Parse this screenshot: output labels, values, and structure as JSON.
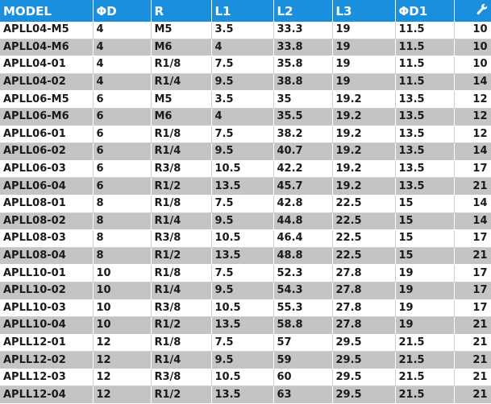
{
  "table": {
    "headers": [
      "MODEL",
      "ΦD",
      "R",
      "L1",
      "L2",
      "L3",
      "ΦD1"
    ],
    "last_header_icon": "wrench-icon",
    "rows": [
      [
        "APLL04-M5",
        "4",
        "M5",
        "3.5",
        "33.3",
        "19",
        "11.5",
        "10"
      ],
      [
        "APLL04-M6",
        "4",
        "M6",
        "4",
        "33.8",
        "19",
        "11.5",
        "10"
      ],
      [
        "APLL04-01",
        "4",
        "R1/8",
        "7.5",
        "35.8",
        "19",
        "11.5",
        "10"
      ],
      [
        "APLL04-02",
        "4",
        "R1/4",
        "9.5",
        "38.8",
        "19",
        "11.5",
        "14"
      ],
      [
        "APLL06-M5",
        "6",
        "M5",
        "3.5",
        "35",
        "19.2",
        "13.5",
        "12"
      ],
      [
        "APLL06-M6",
        "6",
        "M6",
        "4",
        "35.5",
        "19.2",
        "13.5",
        "12"
      ],
      [
        "APLL06-01",
        "6",
        "R1/8",
        "7.5",
        "38.2",
        "19.2",
        "13.5",
        "12"
      ],
      [
        "APLL06-02",
        "6",
        "R1/4",
        "9.5",
        "40.7",
        "19.2",
        "13.5",
        "14"
      ],
      [
        "APLL06-03",
        "6",
        "R3/8",
        "10.5",
        "42.2",
        "19.2",
        "13.5",
        "17"
      ],
      [
        "APLL06-04",
        "6",
        "R1/2",
        "13.5",
        "45.7",
        "19.2",
        "13.5",
        "21"
      ],
      [
        "APLL08-01",
        "8",
        "R1/8",
        "7.5",
        "42.8",
        "22.5",
        "15",
        "14"
      ],
      [
        "APLL08-02",
        "8",
        "R1/4",
        "9.5",
        "44.8",
        "22.5",
        "15",
        "14"
      ],
      [
        "APLL08-03",
        "8",
        "R3/8",
        "10.5",
        "46.4",
        "22.5",
        "15",
        "17"
      ],
      [
        "APLL08-04",
        "8",
        "R1/2",
        "13.5",
        "48.8",
        "22.5",
        "15",
        "21"
      ],
      [
        "APLL10-01",
        "10",
        "R1/8",
        "7.5",
        "52.3",
        "27.8",
        "19",
        "17"
      ],
      [
        "APLL10-02",
        "10",
        "R1/4",
        "9.5",
        "54.3",
        "27.8",
        "19",
        "17"
      ],
      [
        "APLL10-03",
        "10",
        "R3/8",
        "10.5",
        "55.3",
        "27.8",
        "19",
        "17"
      ],
      [
        "APLL10-04",
        "10",
        "R1/2",
        "13.5",
        "58.8",
        "27.8",
        "19",
        "21"
      ],
      [
        "APLL12-01",
        "12",
        "R1/8",
        "7.5",
        "57",
        "29.5",
        "21.5",
        "21"
      ],
      [
        "APLL12-02",
        "12",
        "R1/4",
        "9.5",
        "59",
        "29.5",
        "21.5",
        "21"
      ],
      [
        "APLL12-03",
        "12",
        "R3/8",
        "10.5",
        "60",
        "29.5",
        "21.5",
        "21"
      ],
      [
        "APLL12-04",
        "12",
        "R1/2",
        "13.5",
        "63",
        "29.5",
        "21.5",
        "21"
      ]
    ]
  }
}
